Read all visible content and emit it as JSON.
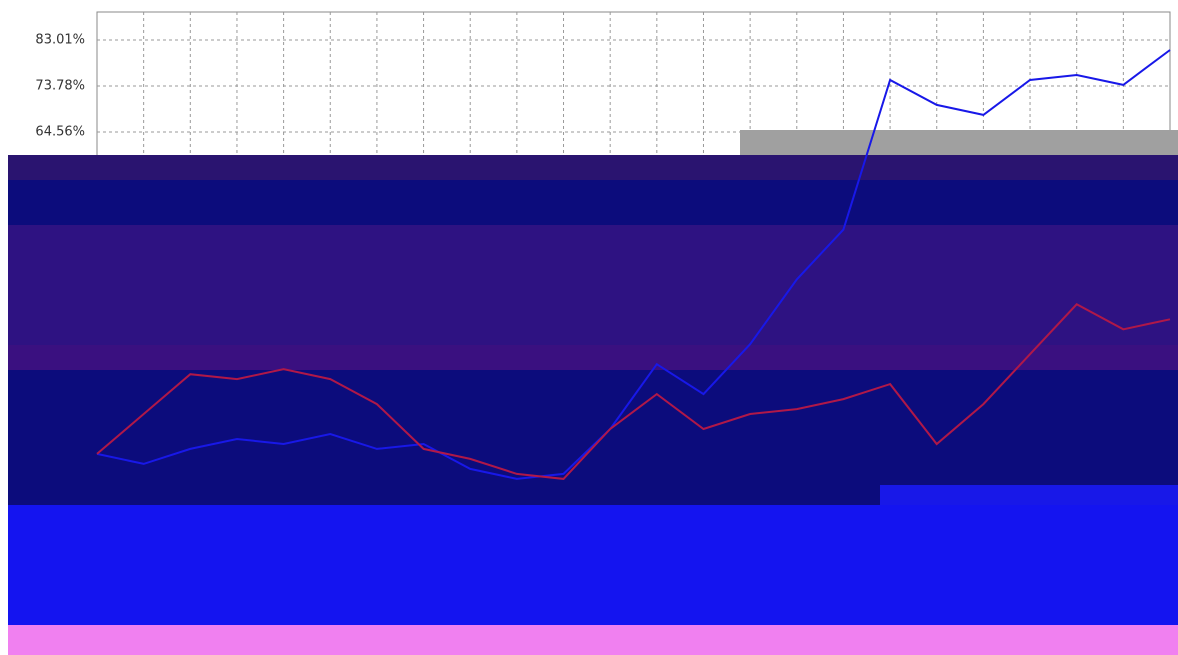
{
  "chart_data": {
    "type": "line",
    "categories": [
      null,
      null,
      null,
      null,
      null,
      null,
      null,
      null,
      null,
      null,
      null,
      null,
      null,
      null,
      null,
      null,
      null,
      null,
      null,
      null,
      null,
      null,
      null,
      null
    ],
    "series": [
      {
        "color": "#1818e8",
        "values": [
          0,
          -2,
          1,
          3,
          2,
          4,
          1,
          2,
          -3,
          -5,
          -4,
          5,
          18,
          12,
          22,
          35,
          45,
          75,
          70,
          68,
          75,
          76,
          74,
          81
        ]
      },
      {
        "color": "#b01848",
        "values": [
          0,
          8,
          16,
          15,
          17,
          15,
          10,
          1,
          -1,
          -4,
          -5,
          5,
          12,
          5,
          8,
          9,
          11,
          14,
          2,
          10,
          20,
          30,
          25,
          27
        ]
      }
    ],
    "ylim": [
      -13.25,
      88.63
    ],
    "yticks": [
      {
        "value": 64.56,
        "label": "64.56%"
      },
      {
        "value": 73.78,
        "label": "73.78%"
      },
      {
        "value": 83.01,
        "label": "83.01%"
      }
    ],
    "grid": true
  }
}
